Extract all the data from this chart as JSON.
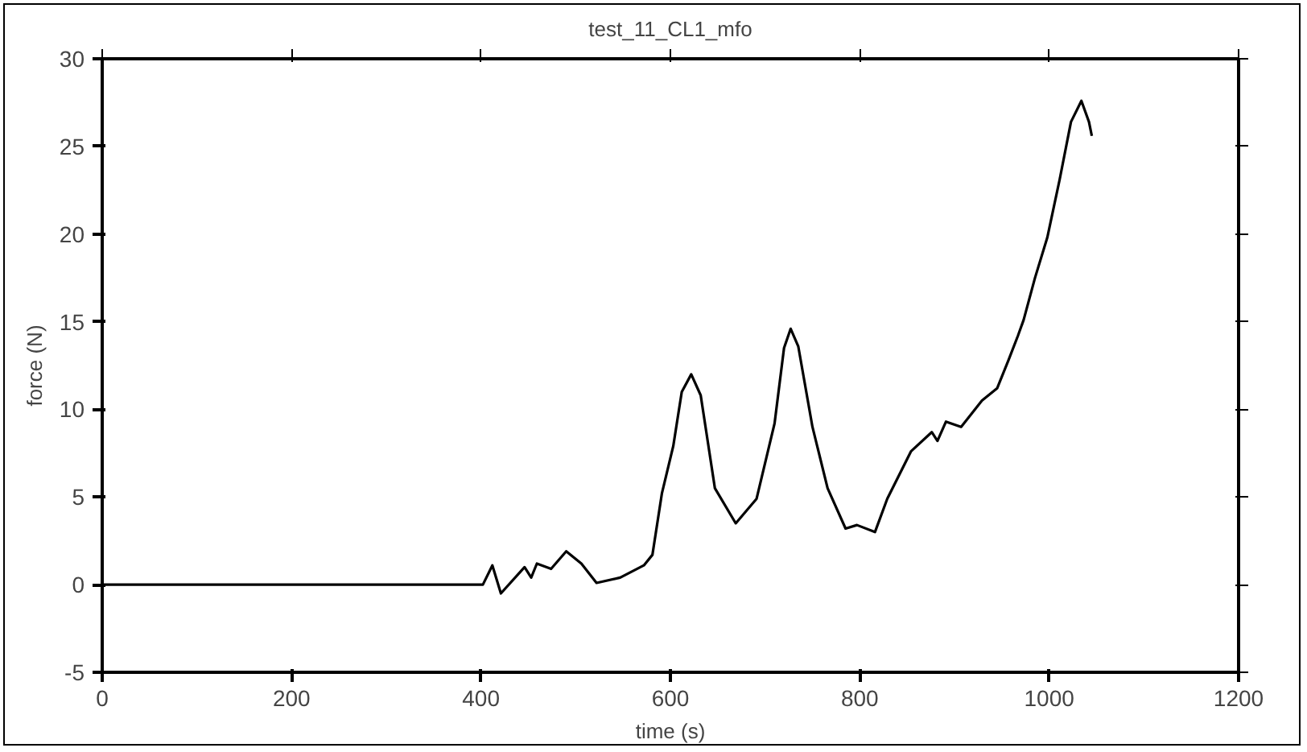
{
  "chart_data": {
    "type": "line",
    "title": "test_11_CL1_mfo",
    "xlabel": "time (s)",
    "ylabel": "force (N)",
    "x": [
      0,
      402,
      412,
      421,
      446,
      453,
      459,
      474,
      490,
      506,
      522,
      547,
      572,
      581,
      591,
      603,
      612,
      622,
      632,
      647,
      669,
      691,
      710,
      720,
      727,
      735,
      750,
      766,
      785,
      797,
      816,
      829,
      854,
      876,
      882,
      891,
      907,
      929,
      945,
      957,
      967,
      973,
      985,
      998,
      1011,
      1023,
      1034,
      1042,
      1045
    ],
    "series": [
      {
        "color": "#000000",
        "values": [
          0,
          0,
          1.1,
          -0.5,
          1.0,
          0.4,
          1.2,
          0.9,
          1.9,
          1.2,
          0.1,
          0.4,
          1.1,
          1.7,
          5.2,
          7.9,
          11.0,
          12.0,
          10.8,
          5.5,
          3.5,
          4.9,
          9.2,
          13.5,
          14.6,
          13.6,
          9.0,
          5.5,
          3.2,
          3.4,
          3.0,
          4.9,
          7.6,
          8.7,
          8.2,
          9.3,
          9.0,
          10.5,
          11.2,
          12.8,
          14.2,
          15.1,
          17.5,
          19.8,
          23.1,
          26.4,
          27.6,
          26.4,
          25.6
        ]
      }
    ],
    "xlim": [
      0,
      1200
    ],
    "xticks": [
      0,
      200,
      400,
      600,
      800,
      1000,
      1200
    ],
    "ylim": [
      -5,
      30
    ],
    "yticks": [
      -5,
      0,
      5,
      10,
      15,
      20,
      25,
      30
    ],
    "grid": false,
    "marker": "none",
    "line_style": "solid"
  }
}
